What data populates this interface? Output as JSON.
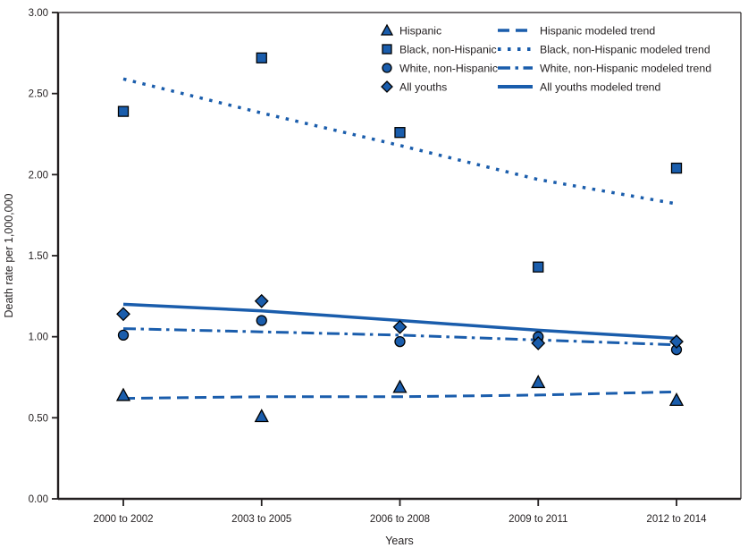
{
  "chart_data": {
    "type": "scatter",
    "title": "",
    "xlabel": "Years",
    "ylabel": "Death rate per 1,000,000",
    "categories": [
      "2000 to 2002",
      "2003 to 2005",
      "2006 to 2008",
      "2009 to 2011",
      "2012 to 2014"
    ],
    "series": [
      {
        "name": "Hispanic",
        "marker": "triangle",
        "values": [
          0.64,
          0.51,
          0.69,
          0.72,
          0.61
        ]
      },
      {
        "name": "Black, non-Hispanic",
        "marker": "square",
        "values": [
          2.39,
          2.72,
          2.26,
          1.43,
          2.04
        ]
      },
      {
        "name": "White, non-Hispanic",
        "marker": "circle",
        "values": [
          1.01,
          1.1,
          0.97,
          1.0,
          0.92
        ]
      },
      {
        "name": "All youths",
        "marker": "diamond",
        "values": [
          1.14,
          1.22,
          1.06,
          0.96,
          0.97
        ]
      }
    ],
    "trends": [
      {
        "name": "Hispanic modeled trend",
        "dash": "dashed",
        "values": [
          0.62,
          0.63,
          0.63,
          0.64,
          0.66
        ]
      },
      {
        "name": "Black, non-Hispanic modeled trend",
        "dash": "dotted",
        "values": [
          2.59,
          2.38,
          2.18,
          1.97,
          1.82
        ]
      },
      {
        "name": "White, non-Hispanic modeled trend",
        "dash": "dashdot",
        "values": [
          1.05,
          1.03,
          1.01,
          0.98,
          0.95
        ]
      },
      {
        "name": "All youths modeled trend",
        "dash": "solid",
        "values": [
          1.2,
          1.16,
          1.1,
          1.04,
          0.99
        ]
      }
    ],
    "ylim": [
      0,
      3
    ],
    "ytick_step": 0.5,
    "ytick_labels": [
      "0.00",
      "0.50",
      "1.00",
      "1.50",
      "2.00",
      "2.50",
      "3.00"
    ],
    "grid": "off",
    "legend_position": "top-right-inside",
    "accent_color": "#1A5DAC",
    "marker_edge_color": "#000000",
    "axis_color": "#231f20"
  }
}
